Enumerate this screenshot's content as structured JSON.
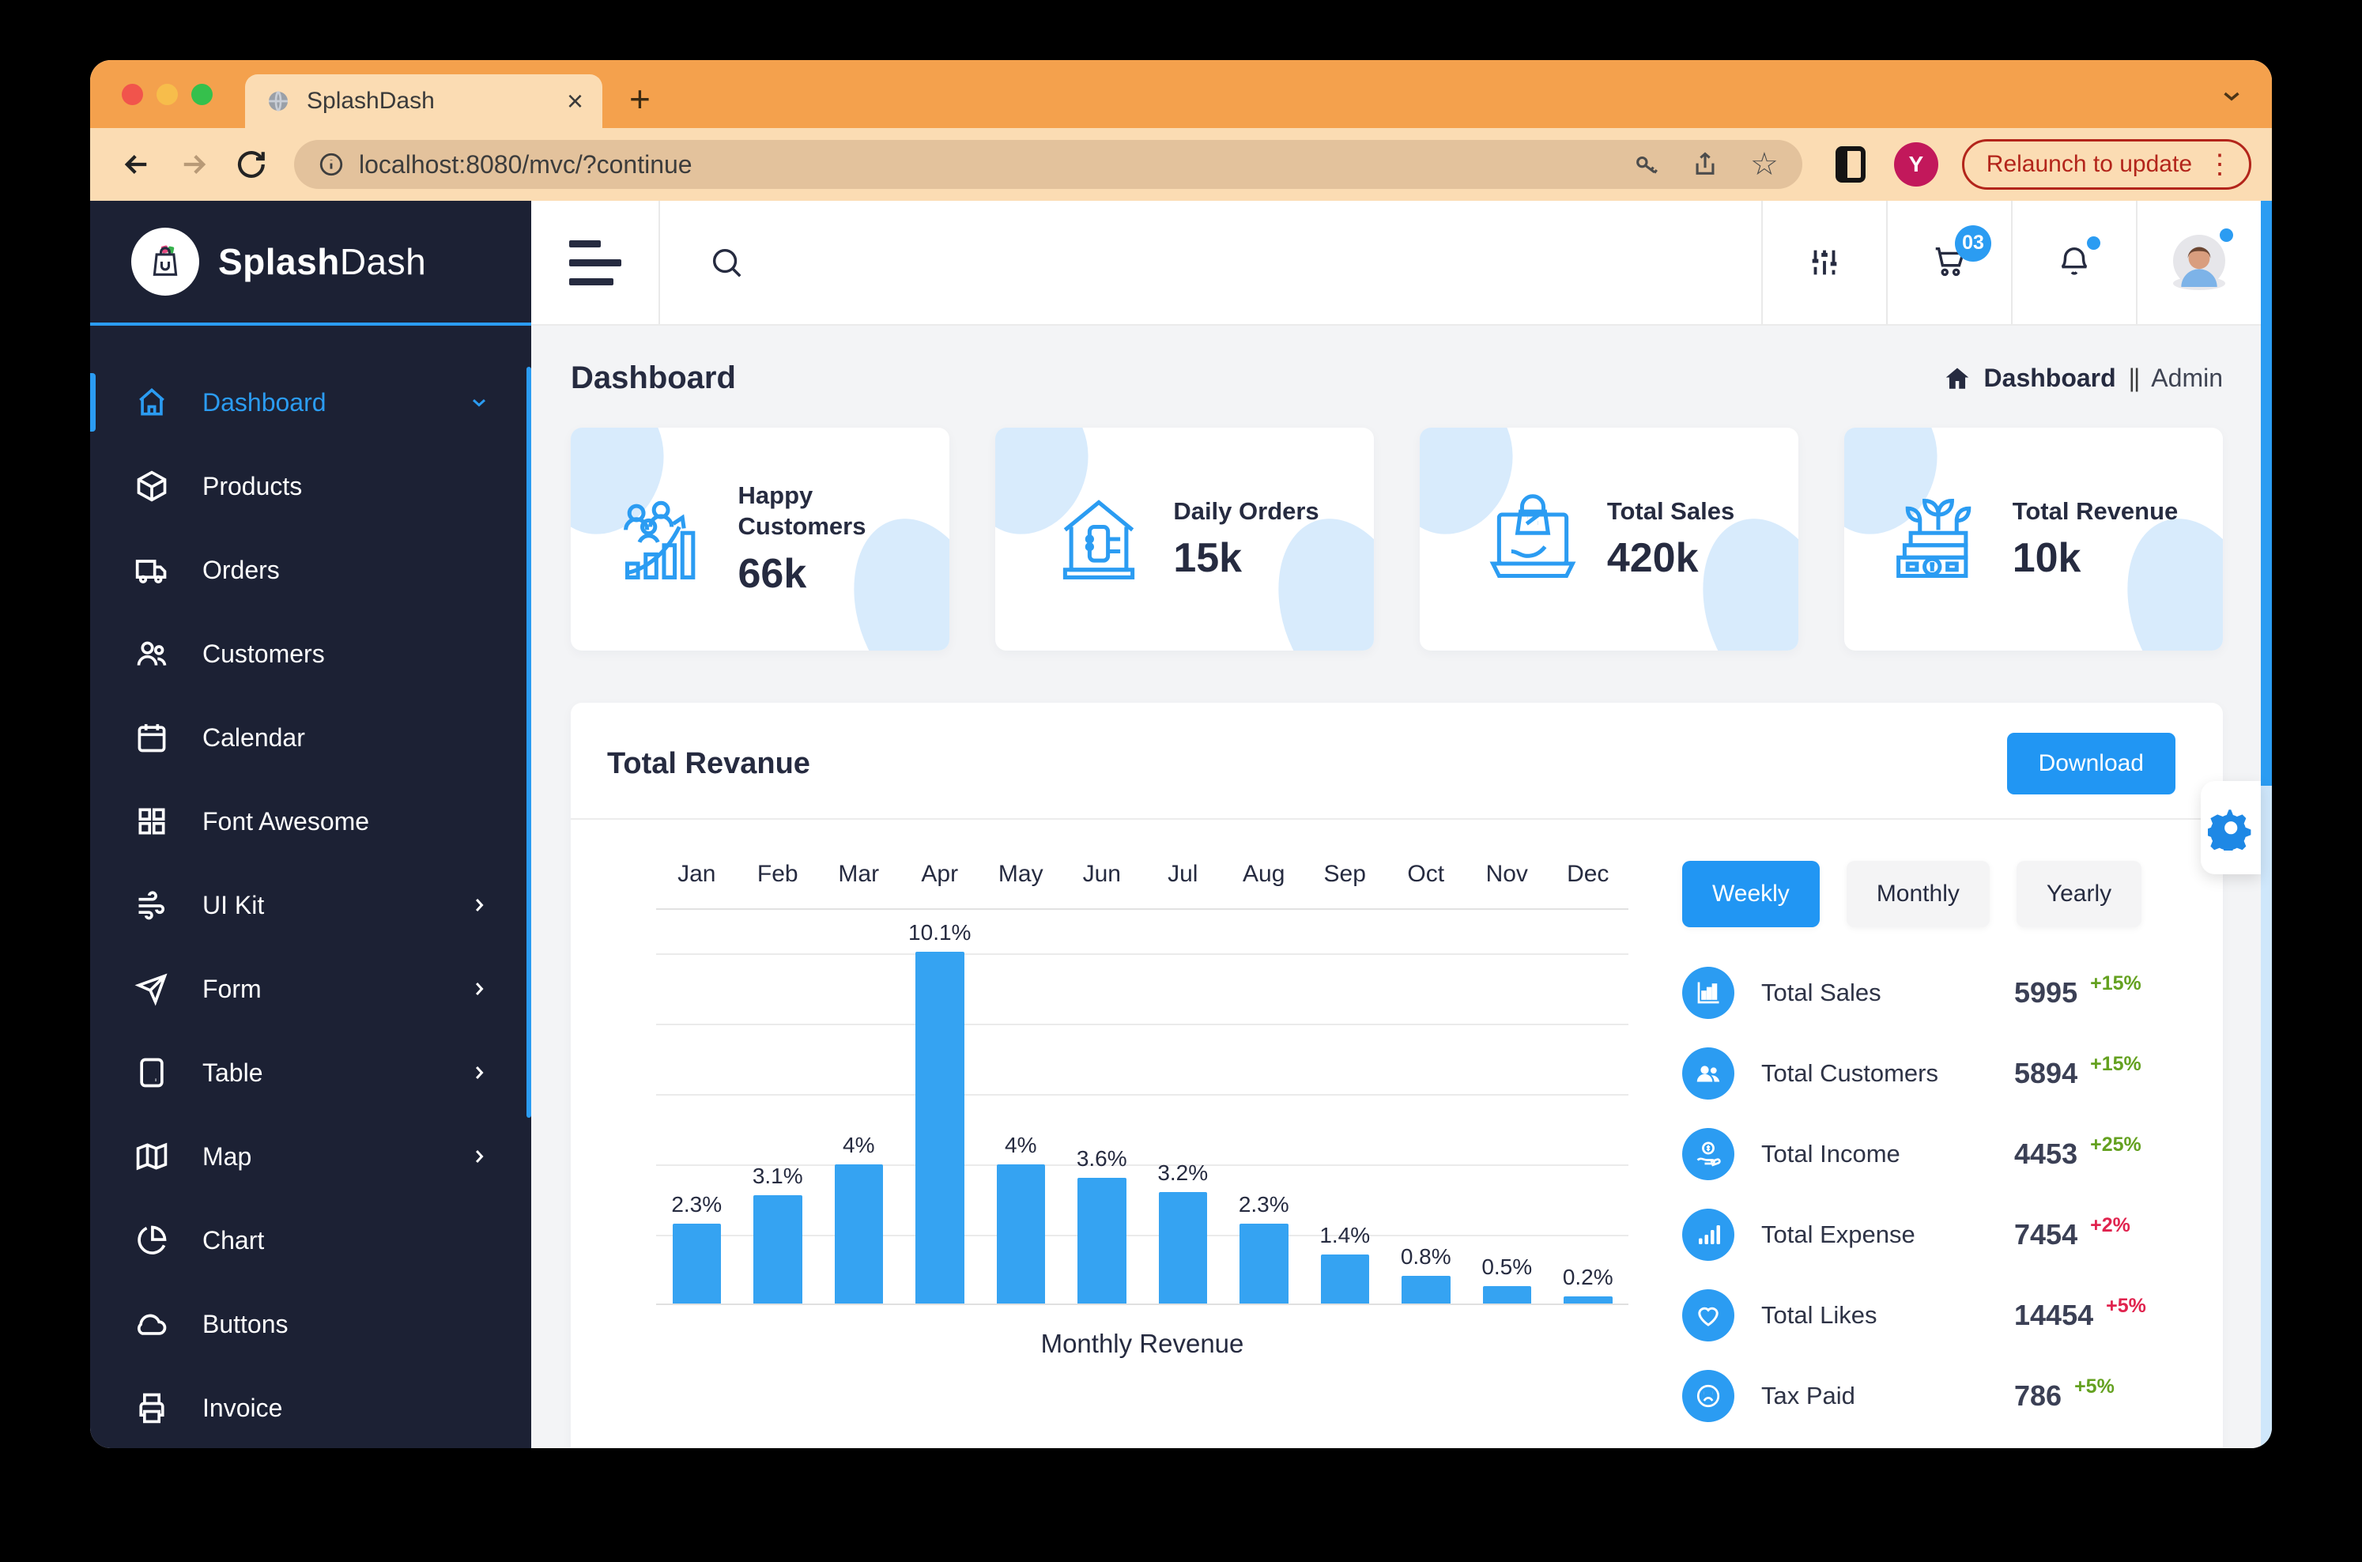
{
  "colors": {
    "accent": "#2b9cf2",
    "bar": "#35a3f2",
    "navy": "#262b40",
    "sidebar_bg": "#1c2134",
    "chrome_orange": "#f4a14d",
    "chrome_peach": "#fbdcb3",
    "chrome_urlbar": "#e3c29c",
    "delta_green": "#64a120",
    "delta_red": "#e0234e",
    "profile_badge": "#c2185b",
    "scroll_track": "#cfe7fb"
  },
  "browser": {
    "tab_title": "SplashDash",
    "close_tab_glyph": "×",
    "new_tab_glyph": "+",
    "url": "localhost:8080/mvc/?continue",
    "relaunch_label": "Relaunch to update",
    "kebab_glyph": "⋮",
    "star_glyph": "☆",
    "avatar_initial": "Y"
  },
  "brand": {
    "first": "Splash",
    "second": "Dash"
  },
  "sidebar": {
    "items": [
      {
        "label": "Dashboard",
        "icon": "home-icon",
        "active": true,
        "chevron": "down"
      },
      {
        "label": "Products",
        "icon": "package-icon"
      },
      {
        "label": "Orders",
        "icon": "truck-icon"
      },
      {
        "label": "Customers",
        "icon": "users-icon"
      },
      {
        "label": "Calendar",
        "icon": "calendar-icon"
      },
      {
        "label": "Font Awesome",
        "icon": "grid-icon"
      },
      {
        "label": "UI Kit",
        "icon": "wind-icon",
        "chevron": "right"
      },
      {
        "label": "Form",
        "icon": "send-icon",
        "chevron": "right"
      },
      {
        "label": "Table",
        "icon": "tablet-icon",
        "chevron": "right"
      },
      {
        "label": "Map",
        "icon": "map-icon",
        "chevron": "right"
      },
      {
        "label": "Chart",
        "icon": "pie-chart-icon"
      },
      {
        "label": "Buttons",
        "icon": "cloud-icon"
      },
      {
        "label": "Invoice",
        "icon": "printer-icon"
      }
    ]
  },
  "topbar": {
    "cart_badge": "03"
  },
  "page_header": {
    "title": "Dashboard",
    "breadcrumb_section": "Dashboard",
    "breadcrumb_separator": "||",
    "breadcrumb_current": "Admin"
  },
  "stat_cards": [
    {
      "icon": "happy-customers-icon",
      "title": "Happy Customers",
      "value": "66k"
    },
    {
      "icon": "daily-orders-icon",
      "title": "Daily Orders",
      "value": "15k"
    },
    {
      "icon": "total-sales-icon",
      "title": "Total Sales",
      "value": "420k"
    },
    {
      "icon": "total-revenue-icon",
      "title": "Total Revenue",
      "value": "10k"
    }
  ],
  "revenue_section": {
    "title": "Total Revanue",
    "download_label": "Download"
  },
  "chart_data": {
    "type": "bar",
    "title": "Monthly Revenue",
    "categories": [
      "Jan",
      "Feb",
      "Mar",
      "Apr",
      "May",
      "Jun",
      "Jul",
      "Aug",
      "Sep",
      "Oct",
      "Nov",
      "Dec"
    ],
    "values": [
      2.3,
      3.1,
      4,
      10.1,
      4,
      3.6,
      3.2,
      2.3,
      1.4,
      0.8,
      0.5,
      0.2
    ],
    "labels": [
      "2.3%",
      "3.1%",
      "4%",
      "10.1%",
      "4%",
      "3.6%",
      "3.2%",
      "2.3%",
      "1.4%",
      "0.8%",
      "0.5%",
      "0.2%"
    ],
    "xlabel": "Monthly Revenue",
    "ylabel": "",
    "ylim": [
      0,
      10.1
    ],
    "grid": "horizontal",
    "legend": "none",
    "bar_color": "#35a3f2"
  },
  "period_tabs": {
    "active": "Weekly",
    "items": [
      "Weekly",
      "Monthly",
      "Yearly"
    ]
  },
  "side_stats": [
    {
      "icon": "column-chart-icon",
      "label": "Total Sales",
      "value": "5995",
      "delta": "+15%",
      "trend": "green"
    },
    {
      "icon": "customers-icon",
      "label": "Total Customers",
      "value": "5894",
      "delta": "+15%",
      "trend": "green"
    },
    {
      "icon": "income-icon",
      "label": "Total Income",
      "value": "4453",
      "delta": "+25%",
      "trend": "green"
    },
    {
      "icon": "expense-icon",
      "label": "Total Expense",
      "value": "7454",
      "delta": "+2%",
      "trend": "red"
    },
    {
      "icon": "likes-icon",
      "label": "Total Likes",
      "value": "14454",
      "delta": "+5%",
      "trend": "red"
    },
    {
      "icon": "tax-icon",
      "label": "Tax Paid",
      "value": "786",
      "delta": "+5%",
      "trend": "green"
    }
  ]
}
